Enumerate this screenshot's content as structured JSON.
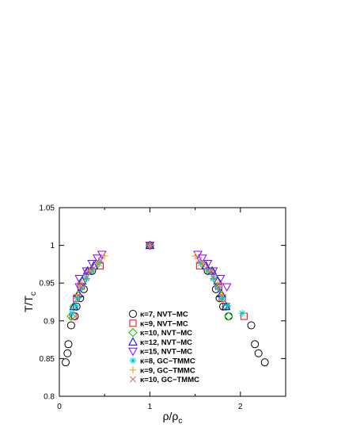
{
  "chart_data": {
    "type": "scatter",
    "xlabel": "ρ/ρ",
    "xlabel_sub": "c",
    "ylabel": "T/T",
    "ylabel_sub": "c",
    "xlim": [
      0,
      2.5
    ],
    "ylim": [
      0.8,
      1.05
    ],
    "xticks": [
      0,
      1,
      2
    ],
    "xticks_minor": [
      0.5,
      1.5
    ],
    "yticks": [
      0.8,
      0.85,
      0.9,
      0.95,
      1,
      1.05
    ],
    "xtick_labels": [
      "0",
      "1",
      "2"
    ],
    "ytick_labels": [
      "0.8",
      "0.85",
      "0.9",
      "0.95",
      "1",
      "1.05"
    ],
    "legend_position": "bottom-center",
    "series": [
      {
        "name": "κ=7, NVT−MC",
        "marker": "circle",
        "color": "#000000",
        "points": [
          [
            0.07,
            0.845
          ],
          [
            0.09,
            0.857
          ],
          [
            0.1,
            0.869
          ],
          [
            0.13,
            0.894
          ],
          [
            0.17,
            0.906
          ],
          [
            0.19,
            0.919
          ],
          [
            0.23,
            0.93
          ],
          [
            0.27,
            0.942
          ],
          [
            0.36,
            0.966
          ],
          [
            1,
            1
          ],
          [
            1.64,
            0.966
          ],
          [
            1.73,
            0.942
          ],
          [
            1.77,
            0.93
          ],
          [
            1.81,
            0.919
          ],
          [
            1.87,
            0.906
          ],
          [
            2.12,
            0.894
          ],
          [
            2.16,
            0.869
          ],
          [
            2.2,
            0.857
          ],
          [
            2.27,
            0.845
          ]
        ]
      },
      {
        "name": "κ=9, NVT−MC",
        "marker": "square",
        "color": "#ff0000",
        "points": [
          [
            0.15,
            0.906
          ],
          [
            0.19,
            0.93
          ],
          [
            0.24,
            0.946
          ],
          [
            0.34,
            0.966
          ],
          [
            0.45,
            0.973
          ],
          [
            1,
            1
          ],
          [
            1.55,
            0.973
          ],
          [
            1.66,
            0.966
          ],
          [
            1.76,
            0.946
          ],
          [
            1.8,
            0.93
          ],
          [
            1.84,
            0.919
          ],
          [
            2.04,
            0.906
          ]
        ]
      },
      {
        "name": "κ=10, NVT−MC",
        "marker": "diamond",
        "color": "#00cc00",
        "points": [
          [
            0.13,
            0.906
          ],
          [
            0.16,
            0.919
          ],
          [
            0.21,
            0.933
          ],
          [
            0.26,
            0.953
          ],
          [
            0.32,
            0.966
          ],
          [
            0.4,
            0.973
          ],
          [
            1,
            1
          ],
          [
            1.6,
            0.973
          ],
          [
            1.68,
            0.966
          ],
          [
            1.74,
            0.953
          ],
          [
            1.79,
            0.933
          ],
          [
            1.84,
            0.919
          ],
          [
            1.87,
            0.906
          ]
        ]
      },
      {
        "name": "κ=12, NVT−MC",
        "marker": "triangle-up",
        "color": "#0000ff",
        "points": [
          [
            0.16,
            0.919
          ],
          [
            0.21,
            0.936
          ],
          [
            0.25,
            0.953
          ],
          [
            0.31,
            0.966
          ],
          [
            0.38,
            0.973
          ],
          [
            1,
            1
          ],
          [
            1.62,
            0.973
          ],
          [
            1.69,
            0.966
          ],
          [
            1.75,
            0.953
          ],
          [
            1.79,
            0.936
          ],
          [
            1.84,
            0.919
          ]
        ]
      },
      {
        "name": "κ=15, NVT−MC",
        "marker": "triangle-down",
        "color": "#8800ff",
        "points": [
          [
            0.22,
            0.945
          ],
          [
            0.22,
            0.956
          ],
          [
            0.3,
            0.966
          ],
          [
            0.36,
            0.976
          ],
          [
            0.42,
            0.983
          ],
          [
            0.47,
            0.988
          ],
          [
            1,
            1
          ],
          [
            1.53,
            0.988
          ],
          [
            1.58,
            0.983
          ],
          [
            1.64,
            0.976
          ],
          [
            1.7,
            0.966
          ],
          [
            1.78,
            0.956
          ],
          [
            1.85,
            0.945
          ]
        ]
      },
      {
        "name": "κ=8, GC−TMMC",
        "marker": "asterisk",
        "color": "#00cccc",
        "points": [
          [
            0.14,
            0.91
          ],
          [
            0.18,
            0.92
          ],
          [
            0.2,
            0.93
          ],
          [
            0.25,
            0.944
          ],
          [
            0.3,
            0.956
          ],
          [
            0.36,
            0.966
          ],
          [
            0.44,
            0.976
          ],
          [
            1,
            1
          ],
          [
            1.56,
            0.976
          ],
          [
            1.64,
            0.966
          ],
          [
            1.7,
            0.956
          ],
          [
            1.75,
            0.944
          ],
          [
            1.8,
            0.93
          ],
          [
            1.86,
            0.92
          ],
          [
            2.02,
            0.91
          ]
        ]
      },
      {
        "name": "κ=9, GC−TMMC",
        "marker": "plus",
        "color": "#ff9900",
        "points": [
          [
            0.2,
            0.935
          ],
          [
            0.25,
            0.95
          ],
          [
            0.33,
            0.966
          ],
          [
            0.42,
            0.976
          ],
          [
            0.5,
            0.986
          ],
          [
            1,
            1
          ],
          [
            1.5,
            0.986
          ],
          [
            1.58,
            0.976
          ],
          [
            1.67,
            0.966
          ],
          [
            1.75,
            0.95
          ],
          [
            1.8,
            0.935
          ]
        ]
      },
      {
        "name": "κ=10, GC−TMMC",
        "marker": "cross",
        "color": "#cc6666",
        "points": [
          [
            0.23,
            0.946
          ],
          [
            0.3,
            0.958
          ],
          [
            0.38,
            0.97
          ],
          [
            0.46,
            0.98
          ],
          [
            1,
            1
          ],
          [
            1.54,
            0.98
          ],
          [
            1.62,
            0.97
          ],
          [
            1.7,
            0.958
          ],
          [
            1.77,
            0.946
          ]
        ]
      }
    ]
  }
}
